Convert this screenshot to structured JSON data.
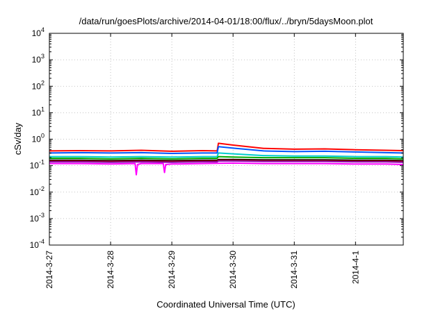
{
  "chart_data": {
    "type": "line",
    "title": "/data/run/goesPlots/archive/2014-04-01/18:00/flux/../bryn/5daysMoon.plot",
    "xlabel": "Coordinated Universal Time (UTC)",
    "ylabel": "cSv/day",
    "yscale": "log",
    "ylim": [
      0.0001,
      10000
    ],
    "xlim": [
      0,
      5.78
    ],
    "grid": true,
    "y_ticks": [
      {
        "value": 0.0001,
        "base": "10",
        "exp": "-4"
      },
      {
        "value": 0.001,
        "base": "10",
        "exp": "-3"
      },
      {
        "value": 0.01,
        "base": "10",
        "exp": "-2"
      },
      {
        "value": 0.1,
        "base": "10",
        "exp": "-1"
      },
      {
        "value": 1,
        "base": "10",
        "exp": "0"
      },
      {
        "value": 10,
        "base": "10",
        "exp": "1"
      },
      {
        "value": 100,
        "base": "10",
        "exp": "2"
      },
      {
        "value": 1000,
        "base": "10",
        "exp": "3"
      },
      {
        "value": 10000,
        "base": "10",
        "exp": "4"
      }
    ],
    "x_ticks": [
      {
        "value": 0,
        "label": "2014-3-27"
      },
      {
        "value": 1,
        "label": "2014-3-28"
      },
      {
        "value": 2,
        "label": "2014-3-29"
      },
      {
        "value": 3,
        "label": "2014-3-30"
      },
      {
        "value": 4,
        "label": "2014-3-31"
      },
      {
        "value": 5,
        "label": "2014-4-1"
      }
    ],
    "series": [
      {
        "color": "#ff0000",
        "x": [
          0,
          0.5,
          1,
          1.5,
          2,
          2.5,
          2.74,
          2.76,
          3,
          3.5,
          4,
          4.5,
          5,
          5.5,
          5.78
        ],
        "values": [
          0.36,
          0.37,
          0.36,
          0.38,
          0.35,
          0.37,
          0.36,
          0.7,
          0.6,
          0.45,
          0.42,
          0.43,
          0.4,
          0.38,
          0.37
        ]
      },
      {
        "color": "#0055ff",
        "x": [
          0,
          0.5,
          1,
          1.5,
          2,
          2.5,
          2.74,
          2.76,
          3,
          3.5,
          4,
          4.5,
          5,
          5.5,
          5.78
        ],
        "values": [
          0.3,
          0.31,
          0.3,
          0.31,
          0.29,
          0.3,
          0.3,
          0.52,
          0.46,
          0.36,
          0.34,
          0.35,
          0.33,
          0.31,
          0.3
        ]
      },
      {
        "color": "#00cccc",
        "x": [
          0,
          0.5,
          1,
          1.5,
          2,
          2.5,
          2.74,
          2.76,
          3,
          3.5,
          4,
          4.5,
          5,
          5.5,
          5.78
        ],
        "values": [
          0.22,
          0.22,
          0.21,
          0.22,
          0.21,
          0.22,
          0.22,
          0.3,
          0.28,
          0.24,
          0.23,
          0.23,
          0.22,
          0.22,
          0.21
        ]
      },
      {
        "color": "#00aa00",
        "x": [
          0,
          0.5,
          1,
          1.5,
          2,
          2.5,
          2.74,
          2.76,
          3,
          3.5,
          4,
          4.5,
          5,
          5.5,
          5.78
        ],
        "values": [
          0.19,
          0.19,
          0.18,
          0.19,
          0.18,
          0.19,
          0.19,
          0.22,
          0.21,
          0.2,
          0.2,
          0.2,
          0.19,
          0.19,
          0.18
        ]
      },
      {
        "color": "#000000",
        "x": [
          0,
          0.5,
          1,
          1.5,
          2,
          2.5,
          2.74,
          2.76,
          3,
          3.5,
          4,
          4.5,
          5,
          5.5,
          5.78
        ],
        "values": [
          0.16,
          0.16,
          0.155,
          0.16,
          0.155,
          0.16,
          0.16,
          0.17,
          0.17,
          0.165,
          0.165,
          0.165,
          0.16,
          0.16,
          0.155
        ]
      },
      {
        "color": "#990000",
        "x": [
          0,
          0.5,
          1,
          1.5,
          2,
          2.5,
          2.74,
          2.76,
          3,
          3.5,
          4,
          4.5,
          5,
          5.5,
          5.78
        ],
        "values": [
          0.15,
          0.15,
          0.145,
          0.15,
          0.145,
          0.15,
          0.15,
          0.16,
          0.16,
          0.155,
          0.155,
          0.155,
          0.15,
          0.15,
          0.145
        ]
      },
      {
        "color": "#8800aa",
        "x": [
          0,
          0.5,
          1,
          1.5,
          2,
          2.5,
          2.74,
          2.76,
          3,
          3.5,
          4,
          4.5,
          5,
          5.5,
          5.78
        ],
        "values": [
          0.14,
          0.14,
          0.135,
          0.14,
          0.135,
          0.14,
          0.14,
          0.15,
          0.15,
          0.145,
          0.145,
          0.145,
          0.14,
          0.14,
          0.135
        ]
      },
      {
        "color": "#ff00ff",
        "x": [
          0,
          0.5,
          1,
          1.4,
          1.42,
          1.44,
          1.5,
          1.86,
          1.88,
          1.9,
          2,
          2.5,
          3,
          3.5,
          4,
          4.5,
          5,
          5.5,
          5.78
        ],
        "values": [
          0.12,
          0.12,
          0.115,
          0.12,
          0.045,
          0.11,
          0.12,
          0.12,
          0.055,
          0.11,
          0.115,
          0.12,
          0.125,
          0.12,
          0.12,
          0.12,
          0.115,
          0.115,
          0.11
        ]
      }
    ]
  }
}
